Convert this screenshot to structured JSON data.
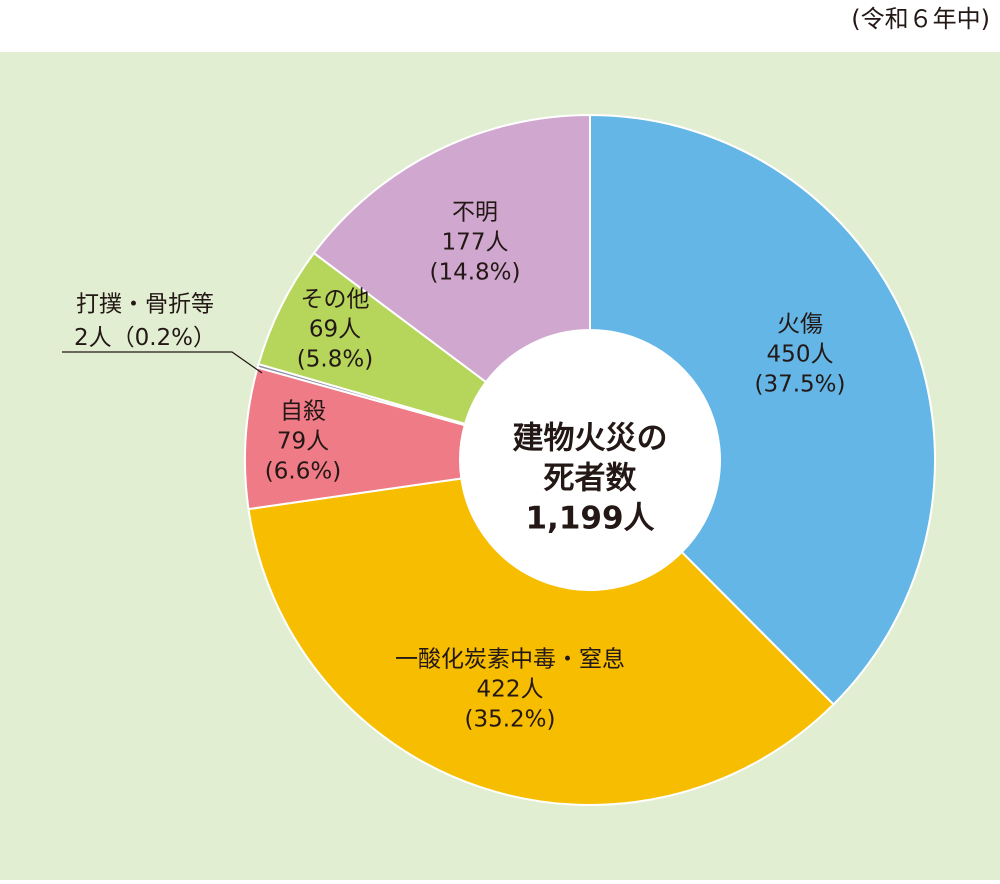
{
  "chart_data": {
    "type": "donut",
    "subtitle": "(令和６年中)",
    "center_label": [
      "建物火災の",
      "死者数",
      "1,199人"
    ],
    "categories": [
      "火傷",
      "一酸化炭素中毒・窒息",
      "自殺",
      "打撲・骨折等",
      "その他",
      "不明"
    ],
    "values": [
      450,
      422,
      79,
      2,
      69,
      177
    ],
    "value_labels": [
      "450人",
      "422人",
      "79人",
      "2人",
      "69人",
      "177人"
    ],
    "percent_labels": [
      "(37.5%)",
      "(35.2%)",
      "(6.6%)",
      "（0.2%）",
      "(5.8%)",
      "(14.8%)"
    ],
    "colors": [
      "#63b6e6",
      "#f7bd00",
      "#ee7b86",
      "#8e8ea6",
      "#b6d55b",
      "#d0a8cf"
    ]
  }
}
